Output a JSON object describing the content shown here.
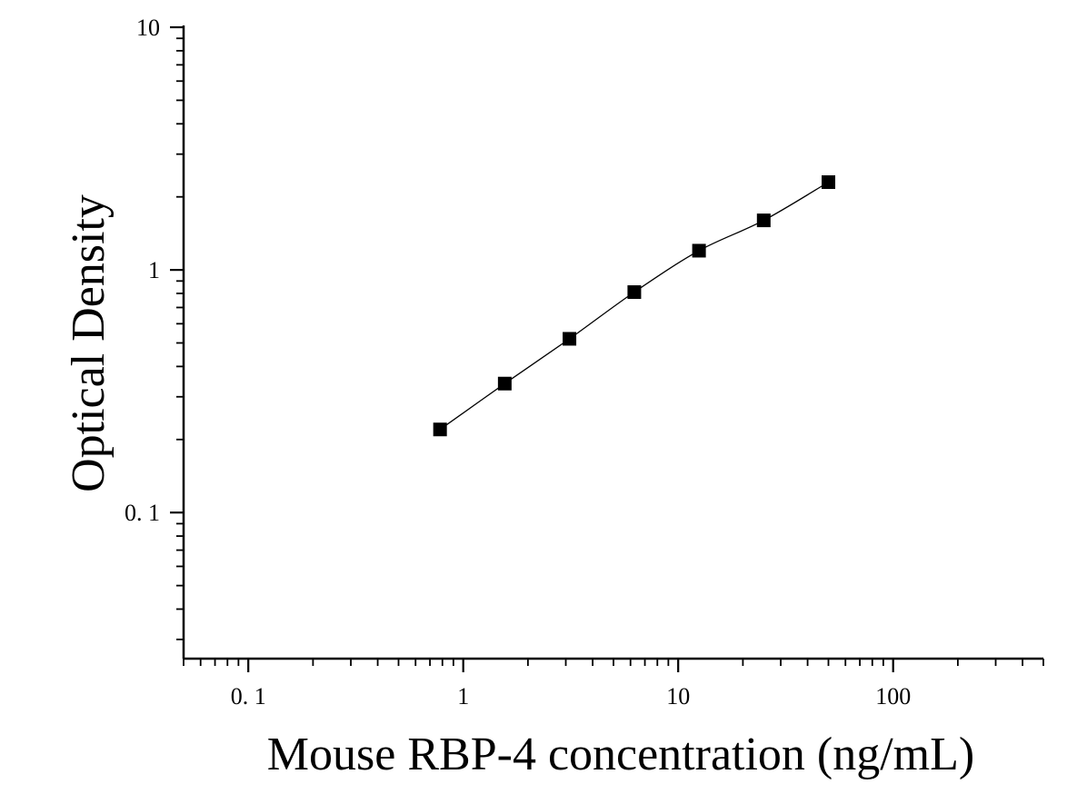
{
  "chart_data": {
    "type": "scatter",
    "title": "",
    "xlabel": "Mouse RBP-4 concentration (ng/mL)",
    "ylabel": "Optical Density",
    "xscale": "log",
    "yscale": "log",
    "xlim": [
      0.05,
      500
    ],
    "ylim": [
      0.025,
      10
    ],
    "x_ticks": [
      {
        "value": 0.1,
        "label": "0. 1"
      },
      {
        "value": 1,
        "label": "1"
      },
      {
        "value": 10,
        "label": "10"
      },
      {
        "value": 100,
        "label": "100"
      }
    ],
    "y_ticks": [
      {
        "value": 0.1,
        "label": "0. 1"
      },
      {
        "value": 1,
        "label": "1"
      },
      {
        "value": 10,
        "label": "10"
      }
    ],
    "grid": false,
    "legend": "none",
    "marker": "square",
    "fit_line": true,
    "color": "#000000",
    "series": [
      {
        "x": [
          0.78,
          1.56,
          3.12,
          6.25,
          12.5,
          25,
          50
        ],
        "y": [
          0.22,
          0.34,
          0.52,
          0.81,
          1.2,
          1.6,
          2.3
        ]
      }
    ]
  }
}
